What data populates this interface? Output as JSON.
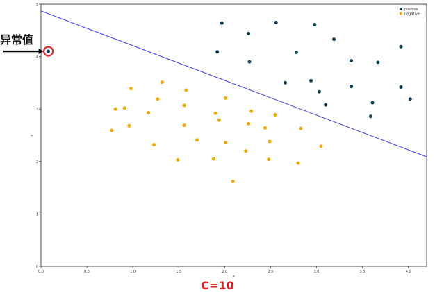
{
  "caption": "C=10",
  "annotation": {
    "text": "异常值"
  },
  "chart_data": {
    "type": "scatter",
    "title": "",
    "xlabel": "x",
    "ylabel": "y",
    "xlim": [
      0,
      4.2
    ],
    "ylim": [
      0,
      5
    ],
    "x_ticks": [
      0.0,
      0.5,
      1.0,
      1.5,
      2.0,
      2.5,
      3.0,
      3.5,
      4.0
    ],
    "y_ticks": [
      0,
      1,
      2,
      3,
      4,
      5
    ],
    "x_tick_labels": [
      "0.0",
      "0.5",
      "1.0",
      "1.5",
      "2.0",
      "2.5",
      "3.0",
      "3.5",
      "4.0"
    ],
    "y_tick_labels": [
      "0",
      "1",
      "2",
      "3",
      "4",
      "5"
    ],
    "grid": false,
    "legend_position": "top-right",
    "series": [
      {
        "name": "positive",
        "color": "#0b3d53",
        "points": [
          [
            0.08,
            4.1
          ],
          [
            1.97,
            4.64
          ],
          [
            2.26,
            4.44
          ],
          [
            2.56,
            4.65
          ],
          [
            2.98,
            4.61
          ],
          [
            1.92,
            4.09
          ],
          [
            2.27,
            3.9
          ],
          [
            2.78,
            4.08
          ],
          [
            3.19,
            4.33
          ],
          [
            3.38,
            3.92
          ],
          [
            3.67,
            3.89
          ],
          [
            3.92,
            4.19
          ],
          [
            2.66,
            3.5
          ],
          [
            2.94,
            3.54
          ],
          [
            3.03,
            3.33
          ],
          [
            3.38,
            3.43
          ],
          [
            3.92,
            3.42
          ],
          [
            3.1,
            3.08
          ],
          [
            3.61,
            3.12
          ],
          [
            3.59,
            2.86
          ],
          [
            4.02,
            3.19
          ]
        ]
      },
      {
        "name": "negative",
        "color": "#f5a800",
        "points": [
          [
            0.98,
            3.39
          ],
          [
            1.32,
            3.51
          ],
          [
            1.58,
            3.36
          ],
          [
            0.81,
            3.0
          ],
          [
            0.91,
            3.02
          ],
          [
            1.27,
            3.19
          ],
          [
            1.17,
            2.93
          ],
          [
            1.56,
            3.07
          ],
          [
            2.01,
            3.21
          ],
          [
            1.9,
            2.92
          ],
          [
            2.29,
            2.96
          ],
          [
            2.55,
            2.89
          ],
          [
            1.94,
            2.79
          ],
          [
            2.26,
            2.72
          ],
          [
            2.44,
            2.64
          ],
          [
            2.83,
            2.63
          ],
          [
            0.96,
            2.68
          ],
          [
            0.77,
            2.59
          ],
          [
            1.56,
            2.69
          ],
          [
            1.7,
            2.41
          ],
          [
            2.01,
            2.36
          ],
          [
            2.49,
            2.38
          ],
          [
            1.23,
            2.32
          ],
          [
            3.05,
            2.29
          ],
          [
            2.23,
            2.2
          ],
          [
            1.49,
            2.03
          ],
          [
            1.88,
            2.05
          ],
          [
            2.48,
            2.04
          ],
          [
            2.8,
            1.97
          ],
          [
            2.09,
            1.62
          ]
        ]
      }
    ],
    "decision_boundary": {
      "color": "#3a3aef",
      "points": [
        [
          0.0,
          4.87
        ],
        [
          4.2,
          2.09
        ]
      ]
    },
    "outlier_marker": {
      "point": [
        0.08,
        4.1
      ],
      "color": "#e02020"
    }
  }
}
